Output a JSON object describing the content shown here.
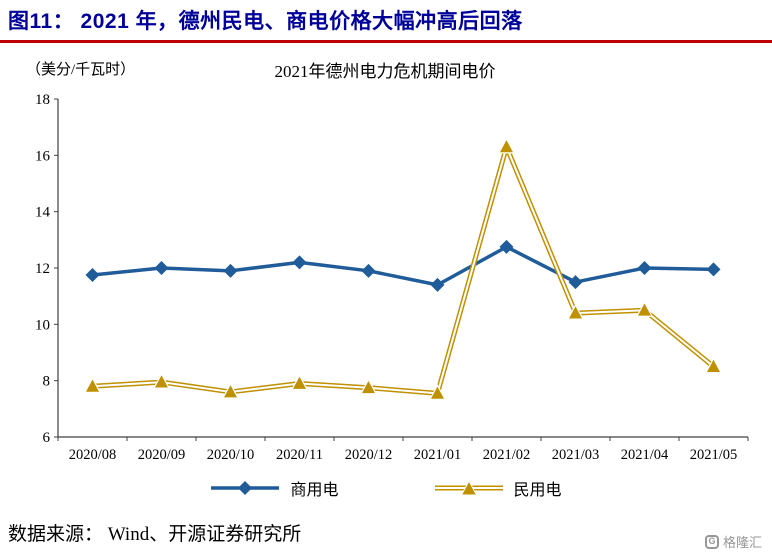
{
  "header": {
    "title": "图11： 2021 年，德州民电、商电价格大幅冲高后回落",
    "title_color": "#000099",
    "divider_color": "#C00000"
  },
  "chart_data": {
    "type": "line",
    "title": "2021年德州电力危机期间电价",
    "unit_label": "（美分/千瓦时）",
    "xlabel": "",
    "ylabel": "美分/千瓦时",
    "categories": [
      "2020/08",
      "2020/09",
      "2020/10",
      "2020/11",
      "2020/12",
      "2021/01",
      "2021/02",
      "2021/03",
      "2021/04",
      "2021/05"
    ],
    "ylim": [
      6,
      18
    ],
    "ytick_step": 2,
    "grid": false,
    "legend_position": "bottom",
    "series": [
      {
        "name": "商用电",
        "color": "#1F5C99",
        "marker": "diamond",
        "line_style": "solid",
        "values": [
          11.75,
          12.0,
          11.9,
          12.2,
          11.9,
          11.4,
          12.75,
          11.5,
          12.0,
          11.95
        ]
      },
      {
        "name": "民用电",
        "color": "#BF9000",
        "marker": "triangle",
        "line_style": "double",
        "values": [
          7.8,
          7.95,
          7.6,
          7.9,
          7.75,
          7.55,
          16.3,
          10.4,
          10.5,
          8.5
        ]
      }
    ]
  },
  "footer": {
    "source": "数据来源： Wind、开源证券研究所",
    "logo_text": "格隆汇",
    "logo_icon_letter": "G"
  }
}
